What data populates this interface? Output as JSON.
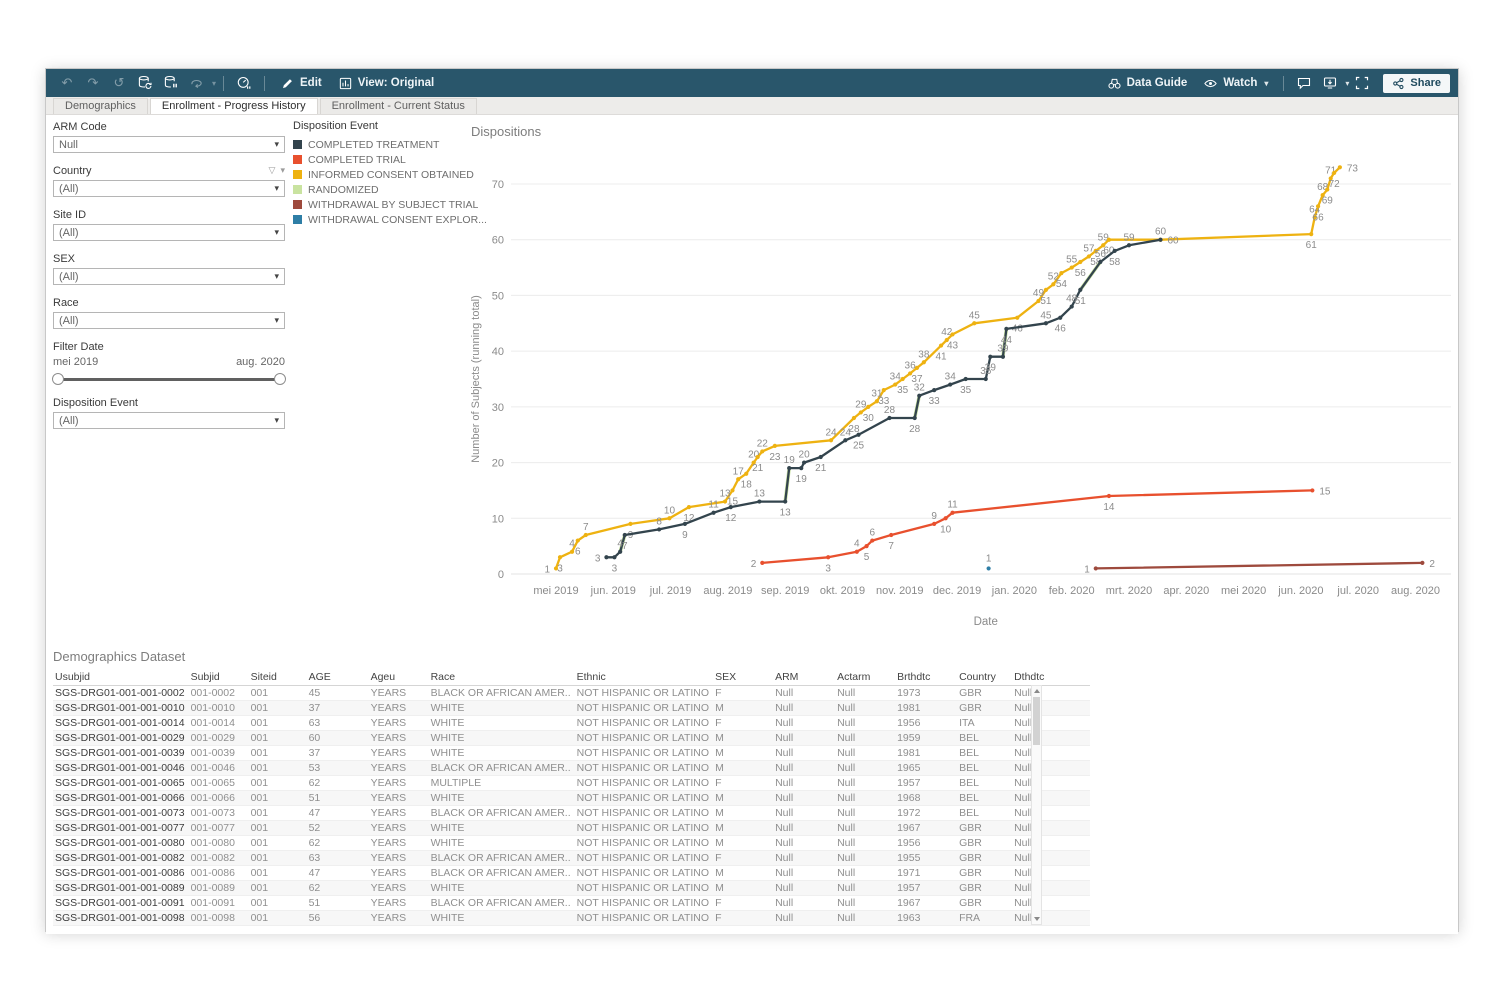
{
  "toolbar": {
    "edit_label": "Edit",
    "view_label": "View: Original",
    "data_guide_label": "Data Guide",
    "watch_label": "Watch",
    "share_label": "Share"
  },
  "tabs": [
    {
      "label": "Demographics",
      "active": false
    },
    {
      "label": "Enrollment - Progress History",
      "active": true
    },
    {
      "label": "Enrollment - Current Status",
      "active": false
    }
  ],
  "filters": [
    {
      "type": "dropdown",
      "label": "ARM Code",
      "value": "Null"
    },
    {
      "type": "dropdown",
      "label": "Country",
      "value": "(All)",
      "funnel": true
    },
    {
      "type": "dropdown",
      "label": "Site ID",
      "value": "(All)"
    },
    {
      "type": "dropdown",
      "label": "SEX",
      "value": "(All)"
    },
    {
      "type": "dropdown",
      "label": "Race",
      "value": "(All)"
    },
    {
      "type": "range",
      "label": "Filter Date",
      "start": "mei 2019",
      "end": "aug. 2020"
    },
    {
      "type": "dropdown",
      "label": "Disposition Event",
      "value": "(All)"
    }
  ],
  "legend": {
    "title": "Disposition Event",
    "items": [
      {
        "label": "COMPLETED TREATMENT",
        "color": "#33444d"
      },
      {
        "label": "COMPLETED TRIAL",
        "color": "#e8502e"
      },
      {
        "label": "INFORMED CONSENT OBTAINED",
        "color": "#eeb211"
      },
      {
        "label": "RANDOMIZED",
        "color": "#c9e3a0"
      },
      {
        "label": "WITHDRAWAL BY SUBJECT TRIAL",
        "color": "#9e4a3d"
      },
      {
        "label": "WITHDRAWAL CONSENT EXPLOR...",
        "color": "#2e7ea6"
      }
    ]
  },
  "chart_data": {
    "type": "line",
    "title": "Dispositions",
    "xlabel": "Date",
    "ylabel": "Number of Subjects (running total)",
    "ylim": [
      0,
      75
    ],
    "yticks": [
      0,
      10,
      20,
      30,
      40,
      50,
      60,
      70
    ],
    "grid": "horizontal",
    "legend_position": "left",
    "x_categories": [
      "mei 2019",
      "jun. 2019",
      "jul. 2019",
      "aug. 2019",
      "sep. 2019",
      "okt. 2019",
      "nov. 2019",
      "dec. 2019",
      "jan. 2020",
      "feb. 2020",
      "mrt. 2020",
      "apr. 2020",
      "mei 2020",
      "jun. 2020",
      "jul. 2020",
      "aug. 2020"
    ],
    "series": [
      {
        "name": "INFORMED CONSENT OBTAINED",
        "color": "#eeb211",
        "points": [
          [
            0,
            1
          ],
          [
            0.07,
            3
          ],
          [
            0.28,
            4
          ],
          [
            0.38,
            6
          ],
          [
            0.52,
            7
          ],
          [
            1.3,
            9
          ],
          [
            1.98,
            10
          ],
          [
            2.32,
            12
          ],
          [
            2.95,
            13
          ],
          [
            3.08,
            15
          ],
          [
            3.18,
            17
          ],
          [
            3.32,
            18
          ],
          [
            3.45,
            20
          ],
          [
            3.52,
            21
          ],
          [
            3.6,
            22
          ],
          [
            3.82,
            23
          ],
          [
            4.8,
            24
          ],
          [
            5.2,
            28
          ],
          [
            5.32,
            29
          ],
          [
            5.45,
            30
          ],
          [
            5.6,
            31
          ],
          [
            5.72,
            33
          ],
          [
            5.92,
            34
          ],
          [
            6.05,
            35
          ],
          [
            6.18,
            36
          ],
          [
            6.3,
            37
          ],
          [
            6.42,
            38
          ],
          [
            6.72,
            41
          ],
          [
            6.82,
            42
          ],
          [
            6.92,
            43
          ],
          [
            7.3,
            45
          ],
          [
            8.05,
            46
          ],
          [
            8.42,
            49
          ],
          [
            8.55,
            51
          ],
          [
            8.68,
            52
          ],
          [
            8.82,
            54
          ],
          [
            9.0,
            55
          ],
          [
            9.15,
            56
          ],
          [
            9.3,
            57
          ],
          [
            9.42,
            58
          ],
          [
            9.55,
            59
          ],
          [
            9.65,
            60
          ],
          [
            10.55,
            60
          ],
          [
            13.18,
            61
          ],
          [
            13.24,
            64
          ],
          [
            13.3,
            66
          ],
          [
            13.38,
            68
          ],
          [
            13.46,
            69
          ],
          [
            13.52,
            71
          ],
          [
            13.58,
            72
          ],
          [
            13.68,
            73
          ]
        ]
      },
      {
        "name": "RANDOMIZED",
        "color": "#c9e3a0",
        "segments": [
          [
            [
              1.12,
              4
            ],
            [
              1.2,
              7
            ]
          ],
          [
            [
              4.0,
              13
            ],
            [
              4.07,
              19
            ]
          ],
          [
            [
              6.26,
              28
            ],
            [
              6.34,
              32
            ]
          ],
          [
            [
              7.8,
              39
            ],
            [
              7.86,
              44
            ]
          ],
          [
            [
              9.15,
              51
            ],
            [
              9.5,
              56
            ]
          ]
        ]
      },
      {
        "name": "COMPLETED TREATMENT",
        "color": "#33444d",
        "points": [
          [
            0.88,
            3
          ],
          [
            1.02,
            3
          ],
          [
            1.12,
            4
          ],
          [
            1.2,
            7
          ],
          [
            1.8,
            8
          ],
          [
            2.25,
            9
          ],
          [
            2.75,
            11
          ],
          [
            3.05,
            12
          ],
          [
            3.55,
            13
          ],
          [
            4.0,
            13
          ],
          [
            4.07,
            19
          ],
          [
            4.28,
            19
          ],
          [
            4.33,
            20
          ],
          [
            4.62,
            21
          ],
          [
            5.05,
            24
          ],
          [
            5.28,
            25
          ],
          [
            5.82,
            28
          ],
          [
            6.26,
            28
          ],
          [
            6.34,
            32
          ],
          [
            6.6,
            33
          ],
          [
            6.88,
            34
          ],
          [
            7.15,
            35
          ],
          [
            7.5,
            35
          ],
          [
            7.58,
            39
          ],
          [
            7.8,
            39
          ],
          [
            7.86,
            44
          ],
          [
            8.55,
            45
          ],
          [
            8.8,
            46
          ],
          [
            9.0,
            48
          ],
          [
            9.15,
            51
          ],
          [
            9.5,
            56
          ],
          [
            9.75,
            58
          ],
          [
            10.0,
            59
          ],
          [
            10.55,
            60
          ]
        ]
      },
      {
        "name": "COMPLETED TRIAL",
        "color": "#e8502e",
        "points": [
          [
            3.6,
            2
          ],
          [
            4.75,
            3
          ],
          [
            5.25,
            4
          ],
          [
            5.42,
            5
          ],
          [
            5.52,
            6
          ],
          [
            5.85,
            7
          ],
          [
            6.6,
            9
          ],
          [
            6.8,
            10
          ],
          [
            6.92,
            11
          ],
          [
            9.65,
            14
          ],
          [
            13.2,
            15
          ]
        ]
      },
      {
        "name": "WITHDRAWAL BY SUBJECT TRIAL",
        "color": "#9e4a3d",
        "points": [
          [
            9.42,
            1
          ],
          [
            15.12,
            2
          ]
        ]
      },
      {
        "name": "WITHDRAWAL CONSENT EXPLOR...",
        "color": "#2e7ea6",
        "points": [
          [
            7.55,
            1
          ]
        ]
      }
    ]
  },
  "table": {
    "title": "Demographics Dataset",
    "columns": [
      "Usubjid",
      "Subjid",
      "Siteid",
      "AGE",
      "Ageu",
      "Race",
      "Ethnic",
      "SEX",
      "ARM",
      "Actarm",
      "Brthdtc",
      "Country",
      "Dthdtc"
    ],
    "rows": [
      [
        "SGS-DRG01-001-001-0002",
        "001-0002",
        "001",
        "45",
        "YEARS",
        "BLACK OR AFRICAN AMER..",
        "NOT HISPANIC OR LATINO",
        "F",
        "Null",
        "Null",
        "1973",
        "GBR",
        "Null"
      ],
      [
        "SGS-DRG01-001-001-0010",
        "001-0010",
        "001",
        "37",
        "YEARS",
        "WHITE",
        "NOT HISPANIC OR LATINO",
        "M",
        "Null",
        "Null",
        "1981",
        "GBR",
        "Null"
      ],
      [
        "SGS-DRG01-001-001-0014",
        "001-0014",
        "001",
        "63",
        "YEARS",
        "WHITE",
        "NOT HISPANIC OR LATINO",
        "F",
        "Null",
        "Null",
        "1956",
        "ITA",
        "Null"
      ],
      [
        "SGS-DRG01-001-001-0029",
        "001-0029",
        "001",
        "60",
        "YEARS",
        "WHITE",
        "NOT HISPANIC OR LATINO",
        "M",
        "Null",
        "Null",
        "1959",
        "BEL",
        "Null"
      ],
      [
        "SGS-DRG01-001-001-0039",
        "001-0039",
        "001",
        "37",
        "YEARS",
        "WHITE",
        "NOT HISPANIC OR LATINO",
        "M",
        "Null",
        "Null",
        "1981",
        "BEL",
        "Null"
      ],
      [
        "SGS-DRG01-001-001-0046",
        "001-0046",
        "001",
        "53",
        "YEARS",
        "BLACK OR AFRICAN AMER..",
        "NOT HISPANIC OR LATINO",
        "M",
        "Null",
        "Null",
        "1965",
        "BEL",
        "Null"
      ],
      [
        "SGS-DRG01-001-001-0065",
        "001-0065",
        "001",
        "62",
        "YEARS",
        "MULTIPLE",
        "NOT HISPANIC OR LATINO",
        "F",
        "Null",
        "Null",
        "1957",
        "BEL",
        "Null"
      ],
      [
        "SGS-DRG01-001-001-0066",
        "001-0066",
        "001",
        "51",
        "YEARS",
        "WHITE",
        "NOT HISPANIC OR LATINO",
        "M",
        "Null",
        "Null",
        "1968",
        "BEL",
        "Null"
      ],
      [
        "SGS-DRG01-001-001-0073",
        "001-0073",
        "001",
        "47",
        "YEARS",
        "BLACK OR AFRICAN AMER..",
        "NOT HISPANIC OR LATINO",
        "M",
        "Null",
        "Null",
        "1972",
        "BEL",
        "Null"
      ],
      [
        "SGS-DRG01-001-001-0077",
        "001-0077",
        "001",
        "52",
        "YEARS",
        "WHITE",
        "NOT HISPANIC OR LATINO",
        "M",
        "Null",
        "Null",
        "1967",
        "GBR",
        "Null"
      ],
      [
        "SGS-DRG01-001-001-0080",
        "001-0080",
        "001",
        "62",
        "YEARS",
        "WHITE",
        "NOT HISPANIC OR LATINO",
        "M",
        "Null",
        "Null",
        "1956",
        "GBR",
        "Null"
      ],
      [
        "SGS-DRG01-001-001-0082",
        "001-0082",
        "001",
        "63",
        "YEARS",
        "BLACK OR AFRICAN AMER..",
        "NOT HISPANIC OR LATINO",
        "F",
        "Null",
        "Null",
        "1955",
        "GBR",
        "Null"
      ],
      [
        "SGS-DRG01-001-001-0086",
        "001-0086",
        "001",
        "47",
        "YEARS",
        "BLACK OR AFRICAN AMER..",
        "NOT HISPANIC OR LATINO",
        "M",
        "Null",
        "Null",
        "1971",
        "GBR",
        "Null"
      ],
      [
        "SGS-DRG01-001-001-0089",
        "001-0089",
        "001",
        "62",
        "YEARS",
        "WHITE",
        "NOT HISPANIC OR LATINO",
        "M",
        "Null",
        "Null",
        "1957",
        "GBR",
        "Null"
      ],
      [
        "SGS-DRG01-001-001-0091",
        "001-0091",
        "001",
        "51",
        "YEARS",
        "BLACK OR AFRICAN AMER..",
        "NOT HISPANIC OR LATINO",
        "F",
        "Null",
        "Null",
        "1967",
        "GBR",
        "Null"
      ],
      [
        "SGS-DRG01-001-001-0098",
        "001-0098",
        "001",
        "56",
        "YEARS",
        "WHITE",
        "NOT HISPANIC OR LATINO",
        "F",
        "Null",
        "Null",
        "1963",
        "FRA",
        "Null"
      ]
    ]
  }
}
